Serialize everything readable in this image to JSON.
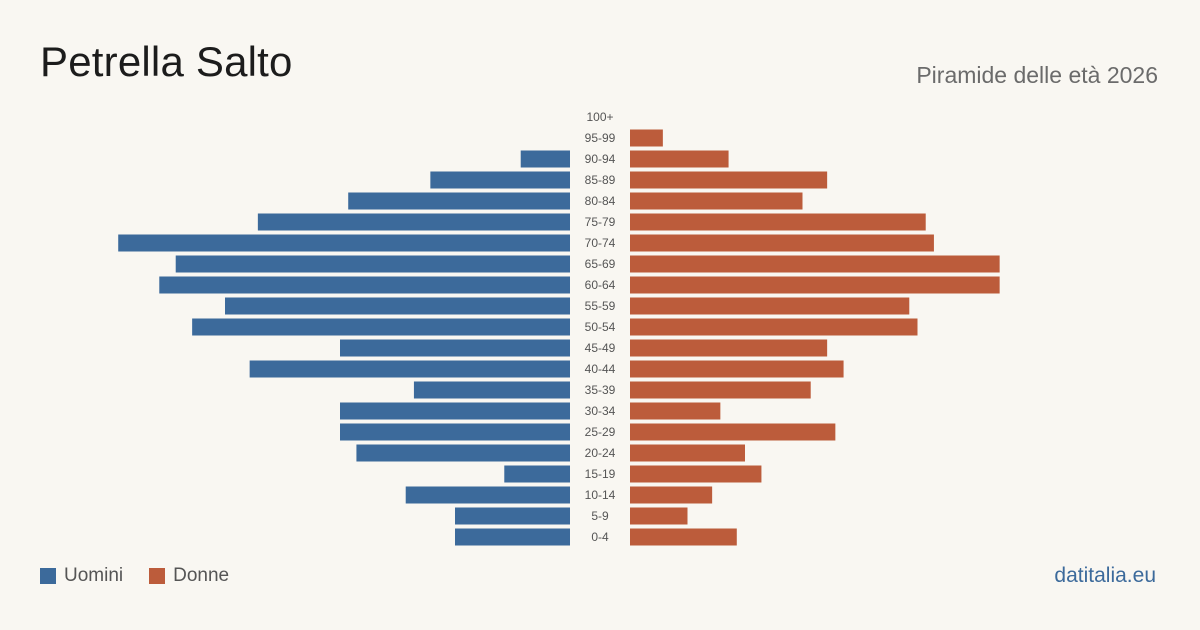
{
  "title": "Petrella Salto",
  "subtitle": "Piramide delle età 2026",
  "source": "datitalia.eu",
  "colors": {
    "male": "#3c6a9b",
    "female": "#bc5c3b",
    "background": "#f9f7f2",
    "source": "#3c6a9b"
  },
  "legend": {
    "male_label": "Uomini",
    "female_label": "Donne"
  },
  "chart_data": {
    "type": "bar",
    "orientation": "horizontal-pyramid",
    "title": "Petrella Salto",
    "subtitle": "Piramide delle età 2026",
    "categories": [
      "100+",
      "95-99",
      "90-94",
      "85-89",
      "80-84",
      "75-79",
      "70-74",
      "65-69",
      "60-64",
      "55-59",
      "50-54",
      "45-49",
      "40-44",
      "35-39",
      "30-34",
      "25-29",
      "20-24",
      "15-19",
      "10-14",
      "5-9",
      "0-4"
    ],
    "series": [
      {
        "name": "Uomini",
        "values": [
          0,
          0,
          6,
          17,
          27,
          38,
          55,
          48,
          50,
          42,
          46,
          28,
          39,
          19,
          28,
          28,
          26,
          8,
          20,
          14,
          14
        ]
      },
      {
        "name": "Donne",
        "values": [
          0,
          4,
          12,
          24,
          21,
          36,
          37,
          45,
          45,
          34,
          35,
          24,
          26,
          22,
          11,
          25,
          14,
          16,
          10,
          7,
          13
        ]
      }
    ],
    "xlim": [
      0,
      56
    ],
    "grid": false,
    "legend_position": "bottom-left"
  }
}
